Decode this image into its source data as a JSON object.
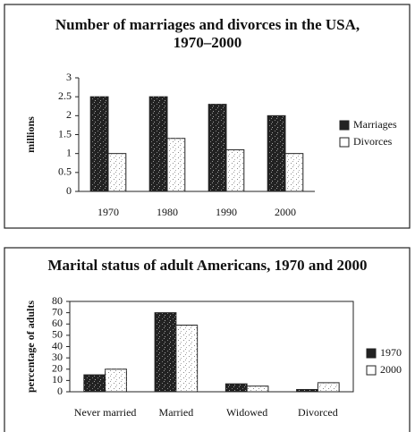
{
  "chart_data": [
    {
      "type": "bar",
      "title": "Number of marriages and divorces in the USA, 1970–2000",
      "y_label": "millions",
      "categories": [
        "1970",
        "1980",
        "1990",
        "2000"
      ],
      "series": [
        {
          "name": "Marriages",
          "color": "#222222",
          "values": [
            2.5,
            2.5,
            2.3,
            2.0
          ]
        },
        {
          "name": "Divorces",
          "color": "#ffffff",
          "values": [
            1.0,
            1.4,
            1.1,
            1.0
          ]
        }
      ],
      "ylim": [
        0,
        3
      ],
      "yticks": [
        0,
        0.5,
        1,
        1.5,
        2,
        2.5,
        3
      ],
      "legend": "right"
    },
    {
      "type": "bar",
      "title": "Marital status of adult Americans, 1970 and 2000",
      "y_label": "percentage of adults",
      "categories": [
        "Never married",
        "Married",
        "Widowed",
        "Divorced"
      ],
      "series": [
        {
          "name": "1970",
          "color": "#222222",
          "values": [
            15,
            70,
            7,
            2
          ]
        },
        {
          "name": "2000",
          "color": "#ffffff",
          "values": [
            20,
            59,
            5,
            8
          ]
        }
      ],
      "ylim": [
        0,
        80
      ],
      "yticks": [
        0,
        10,
        20,
        30,
        40,
        50,
        60,
        70,
        80
      ],
      "legend": "right"
    }
  ]
}
